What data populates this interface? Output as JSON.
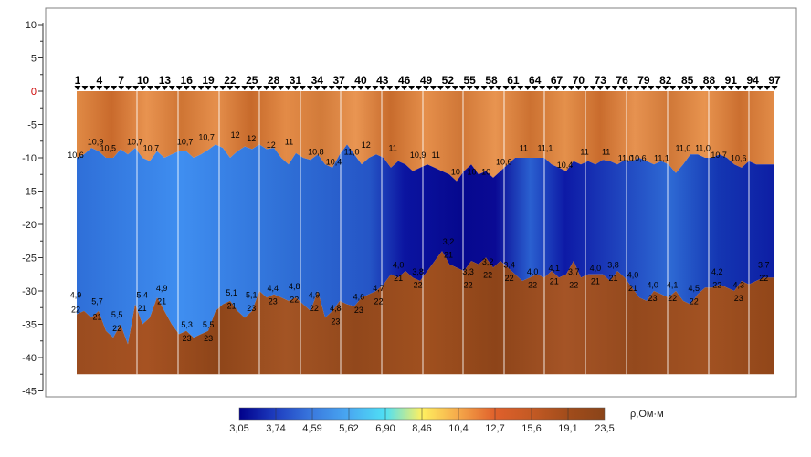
{
  "chart_data": {
    "type": "heatmap",
    "y_axis": {
      "ticks": [
        "10",
        "5",
        "0",
        "-5",
        "-10",
        "-15",
        "-20",
        "-25",
        "-30",
        "-35",
        "-40",
        "-45"
      ],
      "tick_values": [
        10,
        5,
        0,
        -5,
        -10,
        -15,
        -20,
        -25,
        -30,
        -35,
        -40,
        -45
      ],
      "zero_color": "#cc0000",
      "ylim": [
        -45,
        10
      ]
    },
    "stations": {
      "labels": [
        "1",
        "4",
        "7",
        "10",
        "13",
        "16",
        "19",
        "22",
        "25",
        "28",
        "31",
        "34",
        "37",
        "40",
        "43",
        "46",
        "49",
        "52",
        "55",
        "58",
        "61",
        "64",
        "67",
        "70",
        "73",
        "76",
        "79",
        "82",
        "85",
        "88",
        "91",
        "94",
        "97"
      ],
      "range": [
        1,
        100
      ],
      "marker": "down-triangle"
    },
    "layer_top_labels": [
      {
        "s": 1,
        "y": -10,
        "text": "10,6"
      },
      {
        "s": 6.5,
        "y": -8,
        "text": "10,9"
      },
      {
        "s": 10,
        "y": -9,
        "text": "10,5"
      },
      {
        "s": 17.5,
        "y": -8,
        "text": "10,7"
      },
      {
        "s": 22,
        "y": -9,
        "text": "10,7"
      },
      {
        "s": 31.5,
        "y": -8,
        "text": "10,7"
      },
      {
        "s": 37.5,
        "y": -7.3,
        "text": "10,7"
      },
      {
        "s": 45.5,
        "y": -7,
        "text": "12"
      },
      {
        "s": 50,
        "y": -7.5,
        "text": "12"
      },
      {
        "s": 55.5,
        "y": -8.5,
        "text": "12"
      },
      {
        "s": 60.5,
        "y": -8,
        "text": "11"
      },
      {
        "s": 68,
        "y": -9.5,
        "text": "10,8"
      },
      {
        "s": 73,
        "y": -11,
        "text": "10,4"
      },
      {
        "s": 78,
        "y": -9.5,
        "text": "11,0"
      },
      {
        "s": 82,
        "y": -8.5,
        "text": "12"
      },
      {
        "s": 89.5,
        "y": -9,
        "text": "11"
      },
      {
        "s": 96.5,
        "y": -10,
        "text": "10,9"
      },
      {
        "s": 101.5,
        "y": -10,
        "text": "11"
      },
      {
        "s": 107,
        "y": -12.5,
        "text": "10"
      },
      {
        "s": 111.5,
        "y": -12.5,
        "text": "10"
      },
      {
        "s": 115.5,
        "y": -12.5,
        "text": "10"
      },
      {
        "s": 120.5,
        "y": -11,
        "text": "10,6"
      },
      {
        "s": 126,
        "y": -9,
        "text": "11"
      },
      {
        "s": 132,
        "y": -9,
        "text": "11,1"
      },
      {
        "s": 137.5,
        "y": -11.5,
        "text": "10,4"
      },
      {
        "s": 143,
        "y": -9.5,
        "text": "11"
      },
      {
        "s": 149,
        "y": -9.5,
        "text": "11"
      },
      {
        "s": 154.5,
        "y": -10.5,
        "text": "11,0"
      },
      {
        "s": 158,
        "y": -10.5,
        "text": "10,6"
      },
      {
        "s": 164.5,
        "y": -10.5,
        "text": "11,1"
      },
      {
        "s": 170.5,
        "y": -9,
        "text": "11,0"
      },
      {
        "s": 176,
        "y": -9,
        "text": "11,0"
      },
      {
        "s": 180.5,
        "y": -10,
        "text": "10,7"
      },
      {
        "s": 186,
        "y": -10.5,
        "text": "10,6"
      }
    ],
    "layer_bottom_labels": [
      {
        "s": 1,
        "y": -31,
        "text": "4,9"
      },
      {
        "s": 1,
        "y": -33.2,
        "text": "22"
      },
      {
        "s": 7,
        "y": -32,
        "text": "5,7"
      },
      {
        "s": 7,
        "y": -34.3,
        "text": "21"
      },
      {
        "s": 12.5,
        "y": -34,
        "text": "5,5"
      },
      {
        "s": 12.5,
        "y": -36,
        "text": "22"
      },
      {
        "s": 19.5,
        "y": -31,
        "text": "5,4"
      },
      {
        "s": 19.5,
        "y": -33,
        "text": "21"
      },
      {
        "s": 25,
        "y": -30,
        "text": "4,9"
      },
      {
        "s": 25,
        "y": -32,
        "text": "21"
      },
      {
        "s": 32,
        "y": -35.5,
        "text": "5,3"
      },
      {
        "s": 32,
        "y": -37.5,
        "text": "23"
      },
      {
        "s": 38,
        "y": -35.5,
        "text": "5,5"
      },
      {
        "s": 38,
        "y": -37.5,
        "text": "23"
      },
      {
        "s": 44.5,
        "y": -30.7,
        "text": "5,1"
      },
      {
        "s": 44.5,
        "y": -32.7,
        "text": "21"
      },
      {
        "s": 50,
        "y": -31,
        "text": "5,1"
      },
      {
        "s": 50,
        "y": -33,
        "text": "23"
      },
      {
        "s": 56,
        "y": -30,
        "text": "4,4"
      },
      {
        "s": 56,
        "y": -32,
        "text": "23"
      },
      {
        "s": 62,
        "y": -29.7,
        "text": "4,8"
      },
      {
        "s": 62,
        "y": -31.7,
        "text": "22"
      },
      {
        "s": 67.5,
        "y": -31,
        "text": "4,9"
      },
      {
        "s": 67.5,
        "y": -33,
        "text": "22"
      },
      {
        "s": 73.5,
        "y": -33,
        "text": "4,8"
      },
      {
        "s": 73.5,
        "y": -35,
        "text": "23"
      },
      {
        "s": 80,
        "y": -31.3,
        "text": "4,6"
      },
      {
        "s": 80,
        "y": -33.3,
        "text": "23"
      },
      {
        "s": 85.5,
        "y": -30,
        "text": "4,7"
      },
      {
        "s": 85.5,
        "y": -32,
        "text": "22"
      },
      {
        "s": 91,
        "y": -26.5,
        "text": "4,0"
      },
      {
        "s": 91,
        "y": -28.5,
        "text": "21"
      },
      {
        "s": 96.5,
        "y": -27.5,
        "text": "3,8"
      },
      {
        "s": 96.5,
        "y": -29.5,
        "text": "22"
      },
      {
        "s": 105,
        "y": -23,
        "text": "3,2"
      },
      {
        "s": 105,
        "y": -25,
        "text": "21"
      },
      {
        "s": 110.5,
        "y": -27.5,
        "text": "3,3"
      },
      {
        "s": 110.5,
        "y": -29.5,
        "text": "22"
      },
      {
        "s": 116,
        "y": -26,
        "text": "3,2"
      },
      {
        "s": 116,
        "y": -28,
        "text": "22"
      },
      {
        "s": 122,
        "y": -26.5,
        "text": "3,4"
      },
      {
        "s": 122,
        "y": -28.5,
        "text": "22"
      },
      {
        "s": 128.5,
        "y": -27.5,
        "text": "4,0"
      },
      {
        "s": 128.5,
        "y": -29.5,
        "text": "22"
      },
      {
        "s": 134.5,
        "y": -27,
        "text": "4,1"
      },
      {
        "s": 134.5,
        "y": -29,
        "text": "21"
      },
      {
        "s": 140,
        "y": -27.5,
        "text": "3,7"
      },
      {
        "s": 140,
        "y": -29.5,
        "text": "22"
      },
      {
        "s": 146,
        "y": -27,
        "text": "4,0"
      },
      {
        "s": 146,
        "y": -29,
        "text": "21"
      },
      {
        "s": 151,
        "y": -26.5,
        "text": "3,8"
      },
      {
        "s": 151,
        "y": -28.5,
        "text": "21"
      },
      {
        "s": 156.5,
        "y": -28,
        "text": "4,0"
      },
      {
        "s": 156.5,
        "y": -30,
        "text": "21"
      },
      {
        "s": 162,
        "y": -29.5,
        "text": "4,0"
      },
      {
        "s": 162,
        "y": -31.5,
        "text": "23"
      },
      {
        "s": 167.5,
        "y": -29.5,
        "text": "4,1"
      },
      {
        "s": 167.5,
        "y": -31.5,
        "text": "22"
      },
      {
        "s": 173.5,
        "y": -30,
        "text": "4,5"
      },
      {
        "s": 173.5,
        "y": -32,
        "text": "22"
      },
      {
        "s": 180,
        "y": -27.5,
        "text": "4,2"
      },
      {
        "s": 180,
        "y": -29.5,
        "text": "22"
      },
      {
        "s": 186,
        "y": -29.5,
        "text": "4,3"
      },
      {
        "s": 186,
        "y": -31.5,
        "text": "23"
      },
      {
        "s": 193,
        "y": -26.5,
        "text": "3,7"
      },
      {
        "s": 193,
        "y": -28.5,
        "text": "22"
      }
    ],
    "colorbar": {
      "ticks": [
        "3,05",
        "3,74",
        "4,59",
        "5,62",
        "6,90",
        "8,46",
        "10,4",
        "12,7",
        "15,6",
        "19,1",
        "23,5"
      ],
      "unit_label": "ρ,Ом·м",
      "stops": [
        "#00008b",
        "#1e3ec0",
        "#3a7adf",
        "#49a9f2",
        "#4fe0f4",
        "#fff060",
        "#f5a84a",
        "#e0602b",
        "#c45a24",
        "#a14c1b",
        "#8a4419"
      ]
    }
  }
}
